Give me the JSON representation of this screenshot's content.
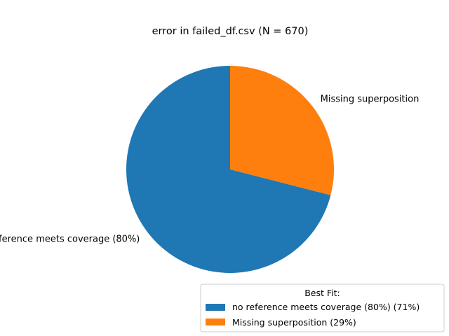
{
  "chart_data": {
    "type": "pie",
    "title": "error in failed_df.csv (N = 670)",
    "slices": [
      {
        "label": "no reference meets coverage (80%)",
        "percent": 71,
        "color": "#1f77b4"
      },
      {
        "label": "Missing superposition",
        "percent": 29,
        "color": "#ff7f0e"
      }
    ],
    "legend": {
      "title": "Best Fit:",
      "placement": "bottom-right",
      "entries": [
        {
          "label": "no reference meets coverage (80%) (71%)",
          "color": "#1f77b4"
        },
        {
          "label": "Missing superposition (29%)",
          "color": "#ff7f0e"
        }
      ]
    }
  }
}
